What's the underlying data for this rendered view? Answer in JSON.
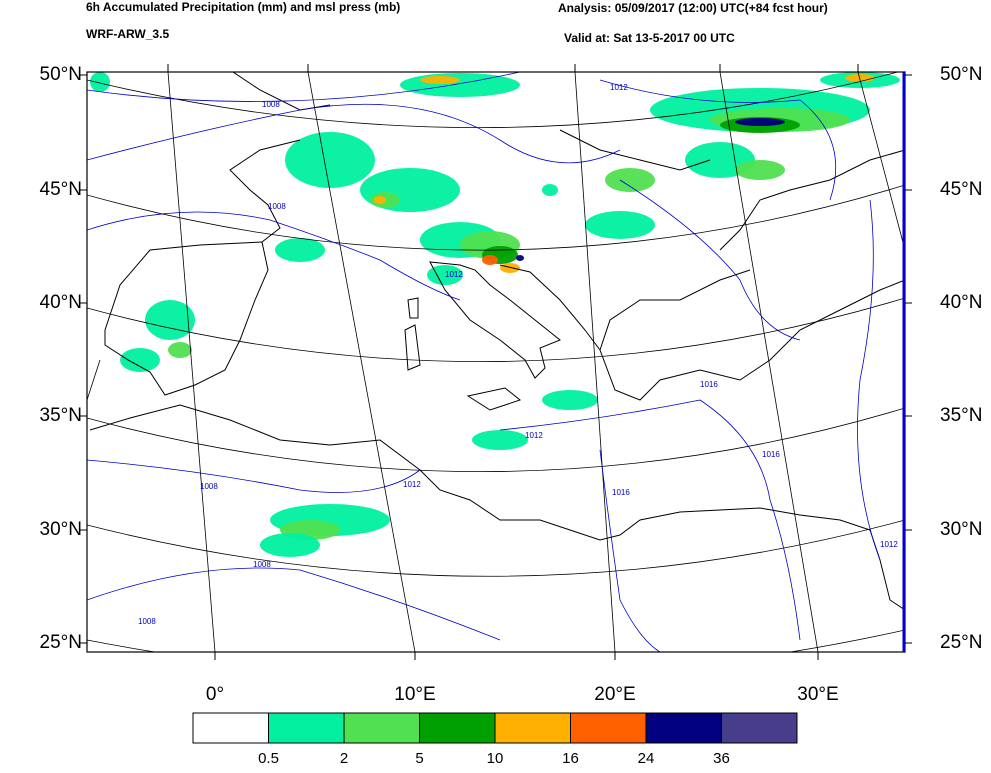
{
  "header": {
    "title": "6h Accumulated Precipitation (mm) and msl press (mb)",
    "model": "WRF-ARW_3.5",
    "analysis": "Analysis: 05/09/2017 (12:00) UTC(+84 fcst hour)",
    "valid": "Valid at: Sat 13-5-2017 00 UTC"
  },
  "map": {
    "lat_labels": [
      "50°N",
      "45°N",
      "40°N",
      "35°N",
      "30°N",
      "25°N"
    ],
    "lon_labels": [
      "0°",
      "10°E",
      "20°E",
      "30°E"
    ],
    "isobar_labels": [
      "1008",
      "1012",
      "1008",
      "1012",
      "1012",
      "1016",
      "1008",
      "1012",
      "1016",
      "1016",
      "1012",
      "1008",
      "1008"
    ]
  },
  "colorbar": {
    "colors": [
      "#ffffff",
      "#00f0a0",
      "#50e050",
      "#00a000",
      "#ffb000",
      "#ff6000",
      "#000080",
      "#483d8b"
    ],
    "labels": [
      "0.5",
      "2",
      "5",
      "10",
      "16",
      "24",
      "36"
    ]
  }
}
